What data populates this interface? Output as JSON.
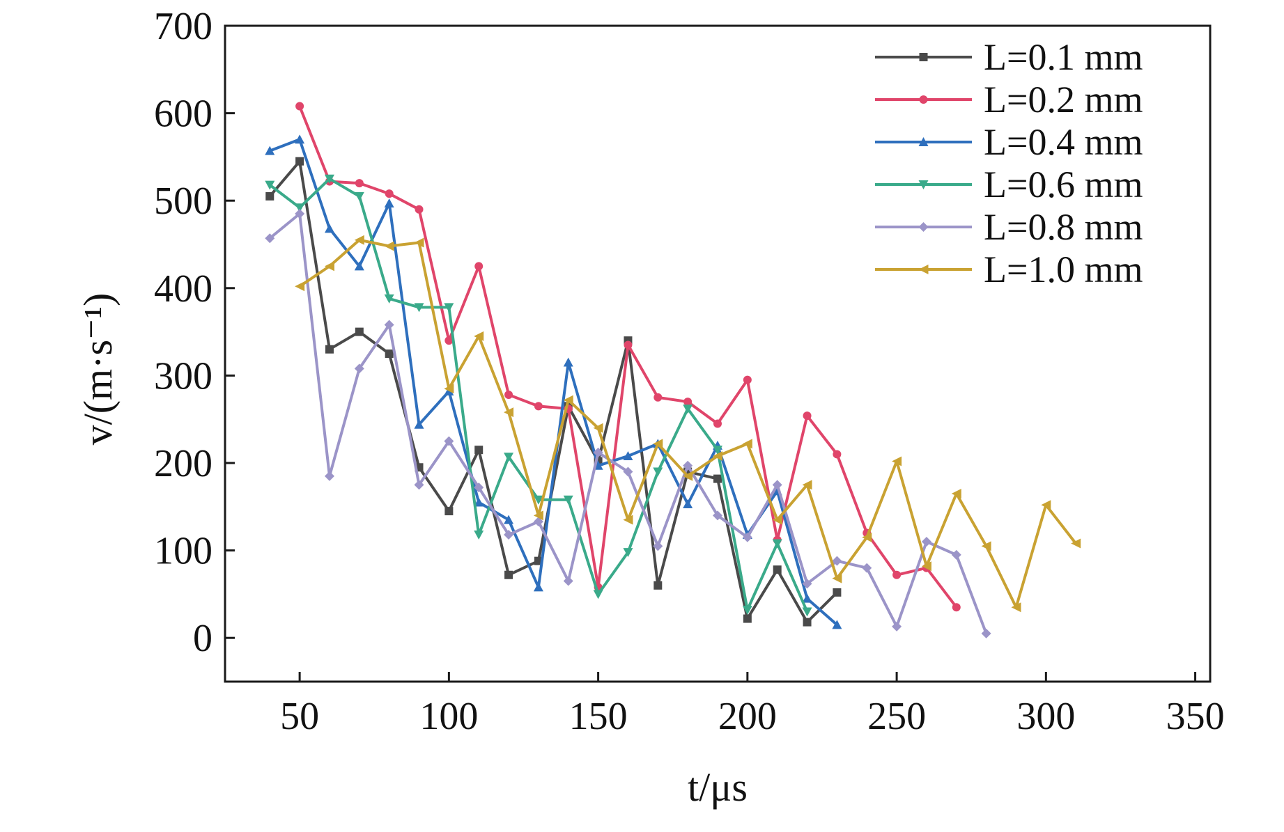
{
  "chart_data": {
    "type": "line",
    "xlabel": "t/μs",
    "ylabel": "v/(m·s⁻¹)",
    "xlim": [
      25,
      355
    ],
    "ylim": [
      -50,
      700
    ],
    "xticks": [
      50,
      100,
      150,
      200,
      250,
      300,
      350
    ],
    "yticks": [
      0,
      100,
      200,
      300,
      400,
      500,
      600,
      700
    ],
    "grid": false,
    "legend_position": "top-right",
    "series": [
      {
        "name": "L=0.1 mm",
        "color": "#4a4a4a",
        "marker": "square",
        "x": [
          40,
          50,
          60,
          70,
          80,
          90,
          100,
          110,
          120,
          130,
          140,
          150,
          160,
          170,
          180,
          190,
          200,
          210,
          220,
          230
        ],
        "y": [
          505,
          545,
          330,
          350,
          325,
          195,
          145,
          215,
          72,
          88,
          265,
          202,
          340,
          60,
          190,
          182,
          22,
          78,
          18,
          52
        ]
      },
      {
        "name": "L=0.2 mm",
        "color": "#e0456a",
        "marker": "circle",
        "x": [
          50,
          60,
          70,
          80,
          90,
          100,
          110,
          120,
          130,
          140,
          150,
          160,
          170,
          180,
          190,
          200,
          210,
          220,
          230,
          240,
          250,
          260,
          270
        ],
        "y": [
          608,
          522,
          520,
          508,
          490,
          340,
          425,
          278,
          265,
          262,
          58,
          335,
          275,
          270,
          245,
          295,
          112,
          254,
          210,
          120,
          72,
          80,
          35
        ]
      },
      {
        "name": "L=0.4 mm",
        "color": "#2e6fbd",
        "marker": "triangle-up",
        "x": [
          40,
          50,
          60,
          70,
          80,
          90,
          100,
          110,
          120,
          130,
          140,
          150,
          160,
          170,
          180,
          190,
          200,
          210,
          220,
          230
        ],
        "y": [
          557,
          570,
          468,
          425,
          497,
          244,
          282,
          155,
          135,
          58,
          315,
          197,
          208,
          222,
          153,
          220,
          118,
          168,
          45,
          15
        ]
      },
      {
        "name": "L=0.6 mm",
        "color": "#3aaa8a",
        "marker": "triangle-down",
        "x": [
          40,
          50,
          60,
          70,
          80,
          90,
          100,
          110,
          120,
          130,
          140,
          150,
          160,
          170,
          180,
          190,
          200,
          210,
          220
        ],
        "y": [
          518,
          492,
          525,
          505,
          388,
          378,
          378,
          118,
          207,
          158,
          158,
          50,
          98,
          190,
          262,
          215,
          32,
          108,
          30
        ]
      },
      {
        "name": "L=0.8 mm",
        "color": "#9b94c8",
        "marker": "diamond",
        "x": [
          40,
          50,
          60,
          70,
          80,
          90,
          100,
          110,
          120,
          130,
          140,
          150,
          160,
          170,
          180,
          190,
          200,
          210,
          220,
          230,
          240,
          250,
          260,
          270,
          280
        ],
        "y": [
          457,
          485,
          185,
          308,
          358,
          175,
          225,
          172,
          118,
          133,
          65,
          212,
          190,
          105,
          197,
          140,
          115,
          175,
          62,
          88,
          80,
          13,
          110,
          95,
          5
        ]
      },
      {
        "name": "L=1.0 mm",
        "color": "#c9a232",
        "marker": "triangle-left",
        "x": [
          50,
          60,
          70,
          80,
          90,
          100,
          110,
          120,
          130,
          140,
          150,
          160,
          170,
          180,
          190,
          200,
          210,
          220,
          230,
          240,
          250,
          260,
          270,
          280,
          290,
          300,
          310
        ],
        "y": [
          402,
          425,
          455,
          448,
          452,
          285,
          345,
          258,
          140,
          272,
          240,
          135,
          222,
          185,
          208,
          222,
          135,
          175,
          68,
          115,
          202,
          82,
          165,
          105,
          35,
          152,
          108
        ]
      }
    ]
  }
}
